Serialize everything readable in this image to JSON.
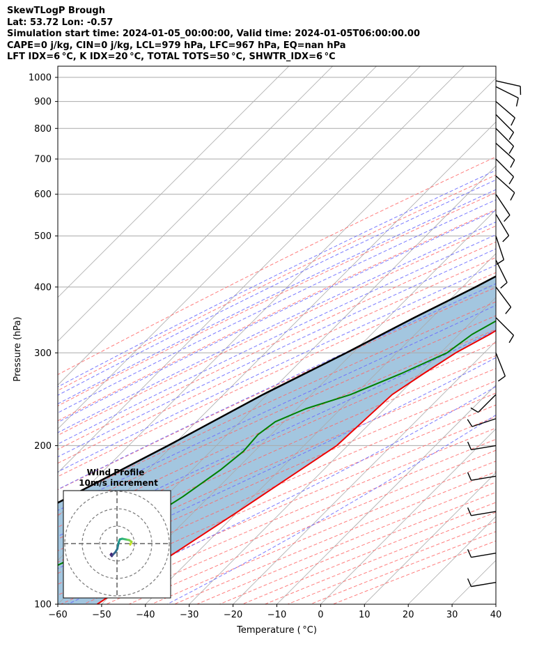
{
  "header": {
    "title": "SkewTLogP Brough",
    "location": "Lat: 53.72   Lon: -0.57",
    "times": "Simulation start time: 2024-01-05_00:00:00, Valid time: 2024-01-05T06:00:00.00",
    "params1": "CAPE=0 j/kg, CIN=0 j/kg, LCL=979 hPa, LFC=967 hPa, EQ=nan hPa",
    "params2": "LFT IDX=6 °C, K IDX=20 °C, TOTAL TOTS=50 °C, SHWTR_IDX=6 °C"
  },
  "chart_data": {
    "type": "line",
    "xlabel": "Temperature ( °C)",
    "ylabel": "Pressure (hPa)",
    "xlim": [
      -60,
      40
    ],
    "ylim": [
      1050,
      100
    ],
    "y_scale": "log",
    "skew": true,
    "x_ticks": [
      "−60",
      "−50",
      "−40",
      "−30",
      "−20",
      "−10",
      "0",
      "10",
      "20",
      "30",
      "40"
    ],
    "y_ticks": [
      1000,
      900,
      800,
      700,
      600,
      500,
      400,
      300,
      200,
      100
    ],
    "grid": true,
    "colors": {
      "temperature": "#ee0000",
      "dewpoint": "#008000",
      "parcel": "#000000",
      "shade": "#a3c6df",
      "dry_adiabat": "#ff6666",
      "moist_adiabat": "#6a6aff",
      "mixing_ratio": "#9b59d0",
      "isotherm": "#aaaaaa"
    },
    "series": [
      {
        "key": "temperature",
        "points": [
          [
            1000,
            7
          ],
          [
            950,
            7
          ],
          [
            900,
            5.5
          ],
          [
            850,
            3.5
          ],
          [
            800,
            1.8
          ],
          [
            750,
            0.2
          ],
          [
            700,
            -1
          ],
          [
            650,
            -2.5
          ],
          [
            600,
            -3.8
          ],
          [
            550,
            -6
          ],
          [
            500,
            -8.5
          ],
          [
            450,
            -11.5
          ],
          [
            400,
            -15.5
          ],
          [
            350,
            -20.5
          ],
          [
            325,
            -23
          ],
          [
            300,
            -26.5
          ],
          [
            275,
            -29
          ],
          [
            250,
            -31.5
          ],
          [
            225,
            -32
          ],
          [
            200,
            -32.5
          ],
          [
            175,
            -36
          ],
          [
            150,
            -40
          ],
          [
            125,
            -45
          ],
          [
            100,
            -51
          ]
        ]
      },
      {
        "key": "dewpoint",
        "points": [
          [
            1000,
            6.5
          ],
          [
            950,
            6
          ],
          [
            900,
            4
          ],
          [
            850,
            2
          ],
          [
            800,
            0.5
          ],
          [
            750,
            -1.5
          ],
          [
            700,
            -3.5
          ],
          [
            650,
            -7
          ],
          [
            620,
            -12
          ],
          [
            600,
            -14
          ],
          [
            550,
            -11
          ],
          [
            525,
            -8
          ],
          [
            500,
            -8.5
          ],
          [
            450,
            -15
          ],
          [
            420,
            -19
          ],
          [
            400,
            -20
          ],
          [
            350,
            -24
          ],
          [
            325,
            -27
          ],
          [
            300,
            -28.5
          ],
          [
            275,
            -34
          ],
          [
            250,
            -41
          ],
          [
            235,
            -48
          ],
          [
            222,
            -52
          ],
          [
            210,
            -53
          ],
          [
            195,
            -52.5
          ],
          [
            180,
            -53.5
          ],
          [
            160,
            -56
          ],
          [
            140,
            -60
          ],
          [
            125,
            -66
          ],
          [
            110,
            -73
          ],
          [
            100,
            -78
          ]
        ]
      },
      {
        "key": "parcel",
        "points": [
          [
            1000,
            7
          ],
          [
            979,
            6.2
          ],
          [
            950,
            4.5
          ],
          [
            900,
            2.5
          ],
          [
            850,
            0
          ],
          [
            800,
            -3
          ],
          [
            750,
            -6
          ],
          [
            700,
            -9
          ],
          [
            650,
            -13
          ],
          [
            600,
            -17
          ],
          [
            550,
            -21.5
          ],
          [
            500,
            -26
          ],
          [
            450,
            -31.5
          ],
          [
            400,
            -37
          ],
          [
            350,
            -44
          ],
          [
            300,
            -51.5
          ],
          [
            250,
            -61
          ],
          [
            200,
            -71
          ],
          [
            150,
            -85
          ],
          [
            100,
            -102
          ]
        ]
      }
    ],
    "wind_barbs": [
      {
        "p": 985,
        "u": -9,
        "v": 2
      },
      {
        "p": 960,
        "u": -8,
        "v": 4
      },
      {
        "p": 900,
        "u": -7,
        "v": 6
      },
      {
        "p": 850,
        "u": -8,
        "v": 8
      },
      {
        "p": 800,
        "u": -9,
        "v": 9
      },
      {
        "p": 750,
        "u": -10,
        "v": 9
      },
      {
        "p": 700,
        "u": -10,
        "v": 10
      },
      {
        "p": 650,
        "u": -10,
        "v": 9
      },
      {
        "p": 600,
        "u": -6,
        "v": 9
      },
      {
        "p": 550,
        "u": -3,
        "v": 5
      },
      {
        "p": 500,
        "u": -1,
        "v": 3
      },
      {
        "p": 450,
        "u": -2,
        "v": 4
      },
      {
        "p": 400,
        "u": -3,
        "v": 4
      },
      {
        "p": 350,
        "u": -4,
        "v": 4
      },
      {
        "p": 300,
        "u": -2,
        "v": 5
      },
      {
        "p": 250,
        "u": 4,
        "v": 4
      },
      {
        "p": 225,
        "u": 6,
        "v": 2
      },
      {
        "p": 200,
        "u": 6,
        "v": 1
      },
      {
        "p": 175,
        "u": 6,
        "v": 1
      },
      {
        "p": 150,
        "u": 6,
        "v": 1
      },
      {
        "p": 125,
        "u": 6,
        "v": 1
      },
      {
        "p": 110,
        "u": 6,
        "v": 1
      }
    ],
    "hodograph": {
      "title": "Wind Profile",
      "subtitle": "10m/s increment",
      "rings": [
        10,
        20,
        30
      ],
      "points": [
        [
          3.8,
          -0.3
        ],
        [
          4.2,
          0.5
        ],
        [
          3.5,
          1.0
        ],
        [
          2.5,
          1.2
        ],
        [
          1.5,
          1.4
        ],
        [
          0.8,
          1.2
        ],
        [
          0.5,
          0.4
        ],
        [
          0.3,
          -0.5
        ],
        [
          0.1,
          -1.5
        ],
        [
          -0.5,
          -2.5
        ],
        [
          -1.2,
          -3.2
        ],
        [
          -1.5,
          -3.6
        ],
        [
          -1.8,
          -3.2
        ],
        [
          -1.6,
          -2.9
        ]
      ]
    }
  }
}
